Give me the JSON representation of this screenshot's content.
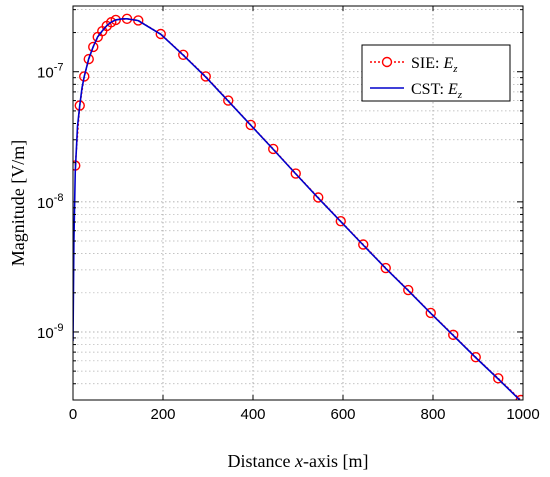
{
  "chart_data": {
    "type": "line",
    "xlabel": "Distance x-axis [m]",
    "ylabel": "Magnitude [V/m]",
    "xlim": [
      0,
      1000
    ],
    "ylim": [
      3e-10,
      3.2e-07
    ],
    "yscale": "log",
    "grid": true,
    "legend_position": "top-right",
    "x_ticks": [
      0,
      200,
      400,
      600,
      800,
      1000
    ],
    "y_ticks": [
      {
        "value": 1e-07,
        "base": "10",
        "exp": "-7"
      },
      {
        "value": 1e-08,
        "base": "10",
        "exp": "-8"
      },
      {
        "value": 1e-09,
        "base": "10",
        "exp": "-9"
      }
    ],
    "series": [
      {
        "name": "SIE: Ez",
        "legend_text": "SIE: ",
        "legend_var": "E",
        "legend_sub": "z",
        "color": "#ff0000",
        "style": "dotted-with-circles",
        "x": [
          5,
          15,
          25,
          35,
          45,
          55,
          65,
          75,
          85,
          95,
          120,
          145,
          195,
          245,
          295,
          345,
          395,
          445,
          495,
          545,
          595,
          645,
          695,
          745,
          795,
          845,
          895,
          945,
          995
        ],
        "values": [
          1.9e-08,
          5.5e-08,
          9.2e-08,
          1.25e-07,
          1.55e-07,
          1.85e-07,
          2.05e-07,
          2.25e-07,
          2.4e-07,
          2.5e-07,
          2.55e-07,
          2.48e-07,
          1.95e-07,
          1.35e-07,
          9.2e-08,
          6e-08,
          3.9e-08,
          2.55e-08,
          1.65e-08,
          1.08e-08,
          7.1e-09,
          4.7e-09,
          3.1e-09,
          2.1e-09,
          1.4e-09,
          9.5e-10,
          6.4e-10,
          4.4e-10,
          3e-10
        ]
      },
      {
        "name": "CST: Ez",
        "legend_text": "CST: ",
        "legend_var": "E",
        "legend_sub": "z",
        "color": "#0000cc",
        "style": "solid",
        "x": [
          0,
          2,
          5,
          10,
          15,
          20,
          25,
          35,
          45,
          55,
          65,
          75,
          85,
          95,
          110,
          120,
          145,
          195,
          245,
          295,
          345,
          395,
          445,
          495,
          545,
          595,
          645,
          695,
          745,
          795,
          845,
          895,
          945,
          995
        ],
        "values": [
          8.5e-10,
          5e-09,
          1.7e-08,
          3.8e-08,
          5.5e-08,
          7.5e-08,
          9.2e-08,
          1.26e-07,
          1.56e-07,
          1.86e-07,
          2.06e-07,
          2.26e-07,
          2.41e-07,
          2.5e-07,
          2.55e-07,
          2.55e-07,
          2.47e-07,
          1.94e-07,
          1.34e-07,
          9.1e-08,
          5.95e-08,
          3.88e-08,
          2.53e-08,
          1.64e-08,
          1.07e-08,
          7.05e-09,
          4.65e-09,
          3.08e-09,
          2.08e-09,
          1.39e-09,
          9.4e-10,
          6.35e-10,
          4.35e-10,
          2.95e-10
        ]
      }
    ]
  }
}
